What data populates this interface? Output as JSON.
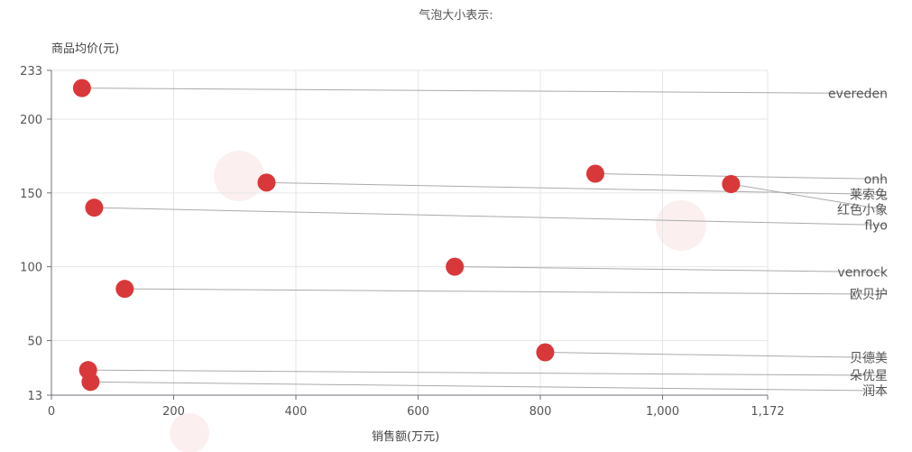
{
  "chart_data": {
    "type": "scatter",
    "title": "气泡大小表示:",
    "xlabel": "销售额(万元)",
    "ylabel": "商品均价(元)",
    "xlim": [
      0,
      1172
    ],
    "ylim": [
      13,
      233
    ],
    "x_ticks": [
      "0",
      "200",
      "400",
      "600",
      "800",
      "1,000",
      "1,172"
    ],
    "x_tick_values": [
      0,
      200,
      400,
      600,
      800,
      1000,
      1172
    ],
    "y_ticks": [
      "13",
      "50",
      "100",
      "150",
      "200",
      "233"
    ],
    "y_tick_values": [
      13,
      50,
      100,
      150,
      200,
      233
    ],
    "grid": true,
    "marker_color": "#d9383a",
    "points": [
      {
        "label": "evereden",
        "x": 50,
        "y": 221
      },
      {
        "label": "onh",
        "x": 890,
        "y": 163
      },
      {
        "label": "莱索兔",
        "x": 352,
        "y": 157
      },
      {
        "label": "红色小象",
        "x": 1112,
        "y": 156
      },
      {
        "label": "flyo",
        "x": 70,
        "y": 140
      },
      {
        "label": "venrock",
        "x": 660,
        "y": 100
      },
      {
        "label": "欧贝护",
        "x": 120,
        "y": 85
      },
      {
        "label": "贝德美",
        "x": 808,
        "y": 42
      },
      {
        "label": "朵优星",
        "x": 60,
        "y": 30
      },
      {
        "label": "润本",
        "x": 64,
        "y": 22
      }
    ]
  }
}
